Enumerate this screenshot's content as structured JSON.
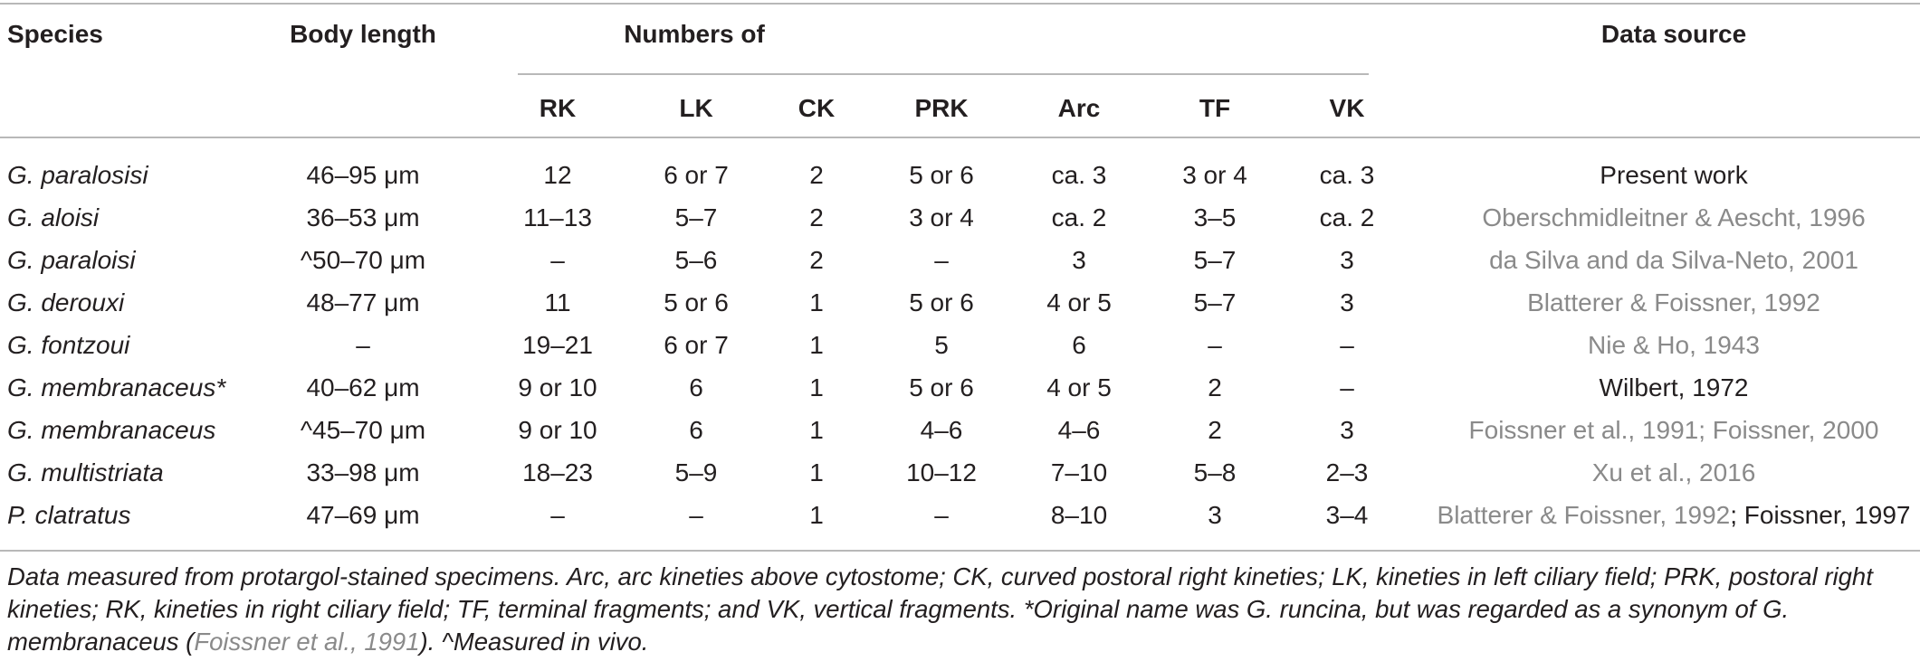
{
  "table": {
    "headers": {
      "species": "Species",
      "body_length": "Body length",
      "numbers_of": "Numbers of",
      "data_source": "Data source"
    },
    "subheaders": [
      "RK",
      "LK",
      "CK",
      "PRK",
      "Arc",
      "TF",
      "VK"
    ],
    "rows": [
      {
        "species": "G. paralosisi",
        "length": "46–95 μm",
        "rk": "12",
        "lk": "6 or 7",
        "ck": "2",
        "prk": "5 or 6",
        "arc": "ca. 3",
        "tf": "3 or 4",
        "vk": "ca. 3",
        "source_a": "",
        "source_b": "Present work"
      },
      {
        "species": "G. aloisi",
        "length": "36–53 μm",
        "rk": "11–13",
        "lk": "5–7",
        "ck": "2",
        "prk": "3 or 4",
        "arc": "ca. 2",
        "tf": "3–5",
        "vk": "ca. 2",
        "source_a": "Oberschmidleitner & Aescht, 1996",
        "source_b": ""
      },
      {
        "species": "G. paraloisi",
        "length": "^50–70 μm",
        "rk": "–",
        "lk": "5–6",
        "ck": "2",
        "prk": "–",
        "arc": "3",
        "tf": "5–7",
        "vk": "3",
        "source_a": "da Silva and da Silva-Neto, 2001",
        "source_b": ""
      },
      {
        "species": "G. derouxi",
        "length": "48–77 μm",
        "rk": "11",
        "lk": "5 or 6",
        "ck": "1",
        "prk": "5 or 6",
        "arc": "4 or 5",
        "tf": "5–7",
        "vk": "3",
        "source_a": "Blatterer & Foissner, 1992",
        "source_b": ""
      },
      {
        "species": "G. fontzoui",
        "length": "–",
        "rk": "19–21",
        "lk": "6 or 7",
        "ck": "1",
        "prk": "5",
        "arc": "6",
        "tf": "–",
        "vk": "–",
        "source_a": "Nie & Ho, 1943",
        "source_b": ""
      },
      {
        "species": "G. membranaceus*",
        "length": "40–62 μm",
        "rk": "9 or 10",
        "lk": "6",
        "ck": "1",
        "prk": "5 or 6",
        "arc": "4 or 5",
        "tf": "2",
        "vk": "–",
        "source_a": "",
        "source_b": "Wilbert, 1972"
      },
      {
        "species": "G. membranaceus",
        "length": "^45–70 μm",
        "rk": "9 or 10",
        "lk": "6",
        "ck": "1",
        "prk": "4–6",
        "arc": "4–6",
        "tf": "2",
        "vk": "3",
        "source_a": "Foissner et al., 1991; Foissner, 2000",
        "source_b": ""
      },
      {
        "species": "G. multistriata",
        "length": "33–98 μm",
        "rk": "18–23",
        "lk": "5–9",
        "ck": "1",
        "prk": "10–12",
        "arc": "7–10",
        "tf": "5–8",
        "vk": "2–3",
        "source_a": "Xu et al., 2016",
        "source_b": ""
      },
      {
        "species": "P. clatratus",
        "length": "47–69 μm",
        "rk": "–",
        "lk": "–",
        "ck": "1",
        "prk": "–",
        "arc": "8–10",
        "tf": "3",
        "vk": "3–4",
        "source_a": "Blatterer & Foissner, 1992",
        "source_b": "; Foissner, 1997"
      }
    ]
  },
  "footnote": {
    "part1": "Data measured from protargol-stained specimens. Arc, arc kineties above cytostome; CK, curved postoral right kineties; LK, kineties in left ciliary field; PRK, postoral right kineties; RK, kineties in right ciliary field; TF, terminal fragments; and VK, vertical fragments. *Original name was G. runcina, but was regarded as a synonym of G. membranaceus (",
    "ref": "Foissner et al., 1991",
    "part2": "). ^Measured in vivo."
  }
}
